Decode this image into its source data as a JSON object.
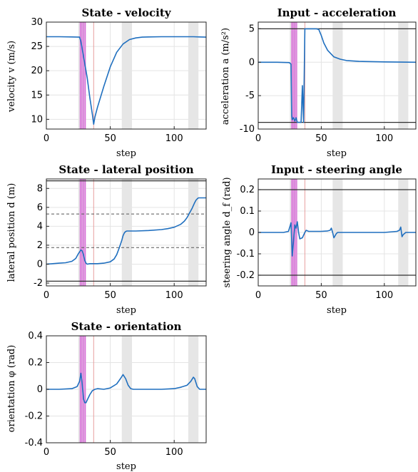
{
  "colors": {
    "line": "#1f6fbf",
    "shade": "#e6e6e6",
    "magenta": "#d966d9",
    "thin_red": "#e8a0a0",
    "grid": "#e4e4e4",
    "limit": "#303030",
    "dashed": "#555555"
  },
  "chart_data": [
    {
      "id": "velocity",
      "type": "line",
      "title": "State - velocity",
      "ylabel": "velocity v (m/s)",
      "xlabel": "step",
      "xlim": [
        0,
        125
      ],
      "ylim": [
        8,
        30
      ],
      "xticks": [
        0,
        50,
        100
      ],
      "yticks": [
        10,
        15,
        20,
        25,
        30
      ],
      "ytick_labels": [
        "10",
        "15",
        "20",
        "25",
        "30"
      ],
      "shaded": [
        [
          25,
          31
        ],
        [
          59,
          67
        ],
        [
          111,
          119
        ]
      ],
      "magenta_lines": [
        26.5,
        27.5,
        28.5,
        29.5,
        30.5
      ],
      "red_lines": [
        37
      ],
      "hlines_solid": [],
      "hlines_dashed": [],
      "series": [
        {
          "x": [
            0,
            10,
            20,
            26,
            27,
            28,
            30,
            32,
            34,
            36,
            37,
            38,
            40,
            45,
            50,
            55,
            60,
            65,
            70,
            75,
            80,
            90,
            100,
            110,
            115,
            120,
            125
          ],
          "y": [
            27.0,
            27.0,
            26.95,
            26.9,
            26.0,
            24.5,
            21.5,
            18.5,
            14.5,
            11.0,
            9.0,
            10.5,
            12.5,
            16.8,
            20.8,
            23.8,
            25.5,
            26.4,
            26.75,
            26.9,
            26.95,
            27.0,
            27.0,
            27.0,
            27.0,
            26.95,
            26.9
          ]
        }
      ]
    },
    {
      "id": "acceleration",
      "type": "line",
      "title": "Input - acceleration",
      "ylabel": "acceleration a (m/s²)",
      "xlabel": "step",
      "xlim": [
        0,
        125
      ],
      "ylim": [
        -10,
        6
      ],
      "xticks": [
        0,
        50,
        100
      ],
      "yticks": [
        -10,
        -5,
        0,
        5
      ],
      "ytick_labels": [
        "-10",
        "-5",
        "0",
        "5"
      ],
      "shaded": [
        [
          25,
          31
        ],
        [
          59,
          67
        ],
        [
          111,
          119
        ]
      ],
      "magenta_lines": [
        26.5,
        27.5,
        28.5,
        29.5,
        30.5
      ],
      "red_lines": [
        37
      ],
      "hlines_solid": [
        5,
        -9
      ],
      "hlines_dashed": [],
      "series": [
        {
          "x": [
            0,
            15,
            23,
            24,
            25,
            26,
            26.5,
            27,
            27.5,
            28,
            29,
            30,
            31,
            32,
            33,
            34,
            35,
            36,
            37,
            38,
            46,
            48,
            50,
            52,
            55,
            60,
            65,
            70,
            80,
            100,
            125
          ],
          "y": [
            0,
            0,
            -0.05,
            -0.05,
            -0.1,
            -0.3,
            -8.0,
            -8.6,
            -8.4,
            -8.3,
            -8.8,
            -8.3,
            -9.0,
            -9.0,
            -9.0,
            -9.0,
            -3.5,
            -9.0,
            5.0,
            5.0,
            5.0,
            4.9,
            4.0,
            2.9,
            1.8,
            0.8,
            0.45,
            0.25,
            0.12,
            0.05,
            0.0
          ]
        }
      ]
    },
    {
      "id": "lateral",
      "type": "line",
      "title": "State - lateral position",
      "ylabel": "lateral position d (m)",
      "xlabel": "step",
      "xlim": [
        0,
        125
      ],
      "ylim": [
        -2.3,
        9
      ],
      "xticks": [
        0,
        50,
        100
      ],
      "yticks": [
        -2,
        0,
        2,
        4,
        6,
        8
      ],
      "ytick_labels": [
        "-2",
        "0",
        "2",
        "4",
        "6",
        "8"
      ],
      "shaded": [
        [
          25,
          31
        ],
        [
          59,
          67
        ],
        [
          111,
          119
        ]
      ],
      "magenta_lines": [
        26.5,
        27.5,
        28.5,
        29.5,
        30.5
      ],
      "red_lines": [
        37
      ],
      "hlines_solid": [
        8.8,
        -1.8
      ],
      "hlines_dashed": [
        5.3,
        1.75
      ],
      "series": [
        {
          "x": [
            0,
            5,
            10,
            15,
            20,
            23,
            25,
            27,
            28,
            29,
            30,
            31,
            32,
            34,
            37,
            40,
            45,
            50,
            53,
            55,
            57,
            59,
            60,
            61,
            62,
            63,
            65,
            70,
            80,
            90,
            95,
            100,
            105,
            108,
            110,
            112,
            114,
            115,
            116,
            117,
            118,
            119,
            121,
            125
          ],
          "y": [
            0,
            0.05,
            0.1,
            0.15,
            0.3,
            0.6,
            1.1,
            1.5,
            1.4,
            1.0,
            0.4,
            0.1,
            0.0,
            0.05,
            0.05,
            0.05,
            0.1,
            0.25,
            0.55,
            1.0,
            1.7,
            2.5,
            3.0,
            3.3,
            3.45,
            3.5,
            3.5,
            3.5,
            3.55,
            3.65,
            3.75,
            3.9,
            4.2,
            4.55,
            4.9,
            5.4,
            5.9,
            6.2,
            6.5,
            6.75,
            6.9,
            7.0,
            7.0,
            7.0
          ]
        }
      ]
    },
    {
      "id": "steering",
      "type": "line",
      "title": "Input - steering angle",
      "ylabel": "steering angle d_f (rad)",
      "xlabel": "step",
      "xlim": [
        0,
        125
      ],
      "ylim": [
        -0.25,
        0.25
      ],
      "xticks": [
        0,
        50,
        100
      ],
      "yticks": [
        -0.2,
        -0.1,
        0,
        0.1,
        0.2
      ],
      "ytick_labels": [
        "-0.2",
        "-0.1",
        "0",
        "0.1",
        "0.2"
      ],
      "shaded": [
        [
          25,
          31
        ],
        [
          59,
          67
        ],
        [
          111,
          119
        ]
      ],
      "magenta_lines": [
        26.5,
        27.5,
        28.5,
        29.5,
        30.5
      ],
      "red_lines": [
        37
      ],
      "hlines_solid": [
        0.2,
        -0.2
      ],
      "hlines_dashed": [],
      "series": [
        {
          "x": [
            0,
            20,
            24,
            26,
            27,
            28,
            29,
            30,
            31,
            32,
            33,
            35,
            37,
            38,
            40,
            45,
            50,
            55,
            57,
            58,
            59,
            60,
            61,
            62,
            63,
            65,
            70,
            80,
            100,
            110,
            112,
            113,
            114,
            115,
            117,
            120,
            125
          ],
          "y": [
            0,
            0.0,
            0.005,
            0.045,
            -0.11,
            -0.04,
            0.035,
            0.02,
            0.05,
            0.0,
            -0.03,
            -0.025,
            0.0,
            0.01,
            0.005,
            0.005,
            0.005,
            0.007,
            0.01,
            0.02,
            0.0,
            -0.025,
            -0.015,
            -0.005,
            0.0,
            0.0,
            0.0,
            0.0,
            0.0,
            0.005,
            0.01,
            0.025,
            -0.02,
            -0.01,
            0.0,
            0.0,
            0.0
          ]
        }
      ]
    },
    {
      "id": "orientation",
      "type": "line",
      "title": "State - orientation",
      "ylabel": "orientation φ (rad)",
      "xlabel": "step",
      "xlim": [
        0,
        125
      ],
      "ylim": [
        -0.4,
        0.4
      ],
      "xticks": [
        0,
        50,
        100
      ],
      "yticks": [
        -0.4,
        -0.2,
        0,
        0.2,
        0.4
      ],
      "ytick_labels": [
        "-0.4",
        "-0.2",
        "0",
        "0.2",
        "0.4"
      ],
      "shaded": [
        [
          25,
          31
        ],
        [
          59,
          67
        ],
        [
          111,
          119
        ]
      ],
      "magenta_lines": [
        26.5,
        27.5,
        28.5,
        29.5,
        30.5
      ],
      "red_lines": [
        37
      ],
      "hlines_solid": [],
      "hlines_dashed": [],
      "series": [
        {
          "x": [
            0,
            10,
            20,
            24,
            26,
            27,
            28,
            29,
            30,
            31,
            32,
            34,
            36,
            38,
            40,
            45,
            50,
            55,
            58,
            60,
            62,
            64,
            66,
            68,
            70,
            80,
            90,
            100,
            105,
            110,
            113,
            115,
            116,
            118,
            120,
            125
          ],
          "y": [
            0,
            0.0,
            0.005,
            0.02,
            0.06,
            0.12,
            0.04,
            -0.07,
            -0.1,
            -0.1,
            -0.08,
            -0.04,
            -0.01,
            0.0,
            0.005,
            0.0,
            0.01,
            0.04,
            0.08,
            0.11,
            0.08,
            0.03,
            0.005,
            0.0,
            0.0,
            0.0,
            0.0,
            0.005,
            0.015,
            0.03,
            0.06,
            0.09,
            0.08,
            0.02,
            0.0,
            0.0
          ]
        }
      ]
    }
  ]
}
